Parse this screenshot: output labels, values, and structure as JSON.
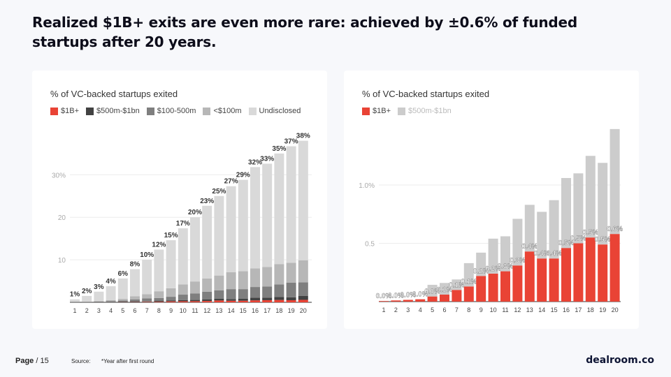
{
  "title": "Realized $1B+ exits are even more rare: achieved by ±0.6% of funded startups after 20 years.",
  "footer": {
    "page": "Page",
    "page_num": "/ 15",
    "source": "Source:",
    "note": "*Year after first round",
    "logo": "dealroom.co"
  },
  "colors": {
    "red": "#e94335",
    "dark": "#424242",
    "mid": "#7f7f7f",
    "light": "#b7b7b7",
    "pale": "#d9d9d9",
    "gray_r": "#cccccc"
  },
  "chart_data": [
    {
      "type": "bar",
      "stacked": true,
      "title": "% of VC-backed startups exited",
      "categories": [
        "1",
        "2",
        "3",
        "4",
        "5",
        "6",
        "7",
        "8",
        "9",
        "10",
        "11",
        "12",
        "13",
        "14",
        "15",
        "16",
        "17",
        "18",
        "19",
        "20"
      ],
      "yticks": [
        {
          "v": 10,
          "label": "10"
        },
        {
          "v": 20,
          "label": "20"
        },
        {
          "v": 30,
          "label": "30%"
        }
      ],
      "ylim": [
        0,
        40
      ],
      "legend": [
        "$1B+",
        "$500m-$1bn",
        "$100-500m",
        "<$100m",
        "Undisclosed"
      ],
      "series": [
        {
          "name": "$1B+",
          "values": [
            0.005,
            0.01,
            0.015,
            0.02,
            0.044,
            0.06,
            0.1,
            0.13,
            0.22,
            0.24,
            0.26,
            0.31,
            0.43,
            0.37,
            0.37,
            0.46,
            0.5,
            0.55,
            0.49,
            0.58
          ]
        },
        {
          "name": "$500m-$1bn",
          "values": [
            0,
            0,
            0,
            0,
            0.1,
            0.1,
            0.09,
            0.2,
            0.2,
            0.3,
            0.3,
            0.4,
            0.4,
            0.4,
            0.5,
            0.6,
            0.6,
            0.7,
            0.7,
            0.9
          ]
        },
        {
          "name": "$100-500m",
          "values": [
            0.095,
            0.09,
            0.185,
            0.28,
            0.26,
            0.54,
            0.71,
            0.67,
            0.88,
            1.26,
            1.54,
            1.79,
            1.97,
            2.33,
            2.23,
            2.54,
            2.6,
            2.95,
            3.41,
            3.22
          ]
        },
        {
          "name": "<$100m",
          "values": [
            0.1,
            0.1,
            0.1,
            0.2,
            0.4,
            0.7,
            1.0,
            1.6,
            2.0,
            2.4,
            2.8,
            3.1,
            3.5,
            4.0,
            4.2,
            4.4,
            4.6,
            4.8,
            4.7,
            5.2
          ]
        },
        {
          "name": "Undisclosed",
          "values": [
            0.5,
            1.3,
            2.2,
            3.3,
            4.8,
            6.4,
            8.1,
            9.8,
            11.3,
            13.2,
            15.1,
            17.1,
            18.7,
            20.2,
            21.5,
            23.8,
            24.3,
            26.0,
            27.4,
            28.1
          ]
        }
      ],
      "data_labels": [
        "1%",
        "2%",
        "3%",
        "4%",
        "6%",
        "8%",
        "10%",
        "12%",
        "15%",
        "17%",
        "20%",
        "23%",
        "25%",
        "27%",
        "29%",
        "32%",
        "33%",
        "35%",
        "37%",
        "38%"
      ]
    },
    {
      "type": "bar",
      "stacked": true,
      "title": "% of VC-backed startups exited",
      "categories": [
        "1",
        "2",
        "3",
        "4",
        "5",
        "6",
        "7",
        "8",
        "9",
        "10",
        "11",
        "12",
        "13",
        "14",
        "15",
        "16",
        "17",
        "18",
        "19",
        "20"
      ],
      "yticks": [
        {
          "v": 0.5,
          "label": "0.5"
        },
        {
          "v": 1.0,
          "label": "1.0%"
        }
      ],
      "ylim": [
        0,
        1.5
      ],
      "legend": [
        "$1B+",
        "$500m-$1bn"
      ],
      "series": [
        {
          "name": "$1B+",
          "values": [
            0.005,
            0.01,
            0.015,
            0.02,
            0.044,
            0.06,
            0.1,
            0.13,
            0.22,
            0.24,
            0.26,
            0.31,
            0.43,
            0.37,
            0.37,
            0.46,
            0.5,
            0.55,
            0.49,
            0.58
          ]
        },
        {
          "name": "$500m-$1bn",
          "values": [
            0,
            0,
            0,
            0,
            0.1,
            0.1,
            0.09,
            0.2,
            0.2,
            0.3,
            0.3,
            0.4,
            0.4,
            0.4,
            0.5,
            0.6,
            0.6,
            0.7,
            0.7,
            0.9
          ]
        }
      ],
      "data_labels": [
        "0.0%",
        "0.0%",
        "0.0%",
        "0.0%",
        "0.0%",
        "0.1%",
        "0.1%",
        "0.1%",
        "0.2%",
        "0.2%",
        "0.3%",
        "0.3%",
        "0.4%",
        "0.4%",
        "0.4%",
        "0.5%",
        "0.5%",
        "0.5%",
        "0.5%",
        "0.6%"
      ]
    }
  ]
}
